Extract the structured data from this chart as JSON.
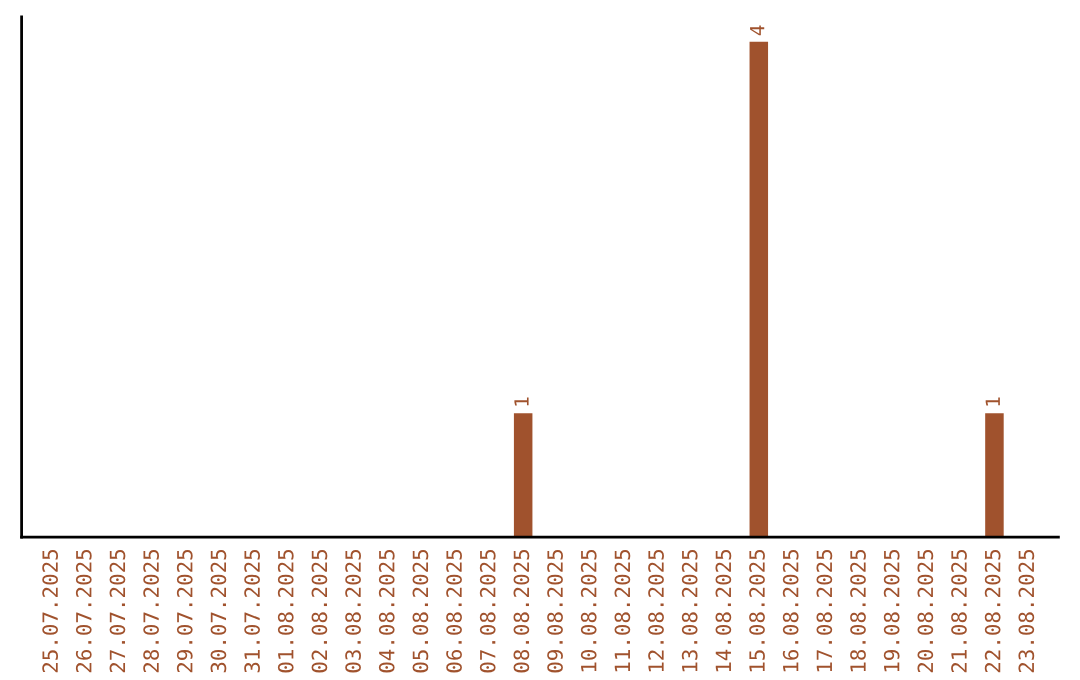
{
  "chart_data": {
    "type": "bar",
    "categories": [
      "25.07.2025",
      "26.07.2025",
      "27.07.2025",
      "28.07.2025",
      "29.07.2025",
      "30.07.2025",
      "31.07.2025",
      "01.08.2025",
      "02.08.2025",
      "03.08.2025",
      "04.08.2025",
      "05.08.2025",
      "06.08.2025",
      "07.08.2025",
      "08.08.2025",
      "09.08.2025",
      "10.08.2025",
      "11.08.2025",
      "12.08.2025",
      "13.08.2025",
      "14.08.2025",
      "15.08.2025",
      "16.08.2025",
      "17.08.2025",
      "18.08.2025",
      "19.08.2025",
      "20.08.2025",
      "21.08.2025",
      "22.08.2025",
      "23.08.2025"
    ],
    "values": [
      null,
      null,
      null,
      null,
      null,
      null,
      null,
      null,
      null,
      null,
      null,
      null,
      null,
      null,
      1,
      null,
      null,
      null,
      null,
      null,
      null,
      4,
      null,
      null,
      null,
      null,
      null,
      null,
      1,
      null
    ],
    "value_labels": [
      null,
      null,
      null,
      null,
      null,
      null,
      null,
      null,
      null,
      null,
      null,
      null,
      null,
      null,
      "1",
      null,
      null,
      null,
      null,
      null,
      null,
      "4",
      null,
      null,
      null,
      null,
      null,
      null,
      "1",
      null
    ],
    "color": "#a0522d",
    "tick_labels": "x",
    "grid": false,
    "legend": false
  }
}
